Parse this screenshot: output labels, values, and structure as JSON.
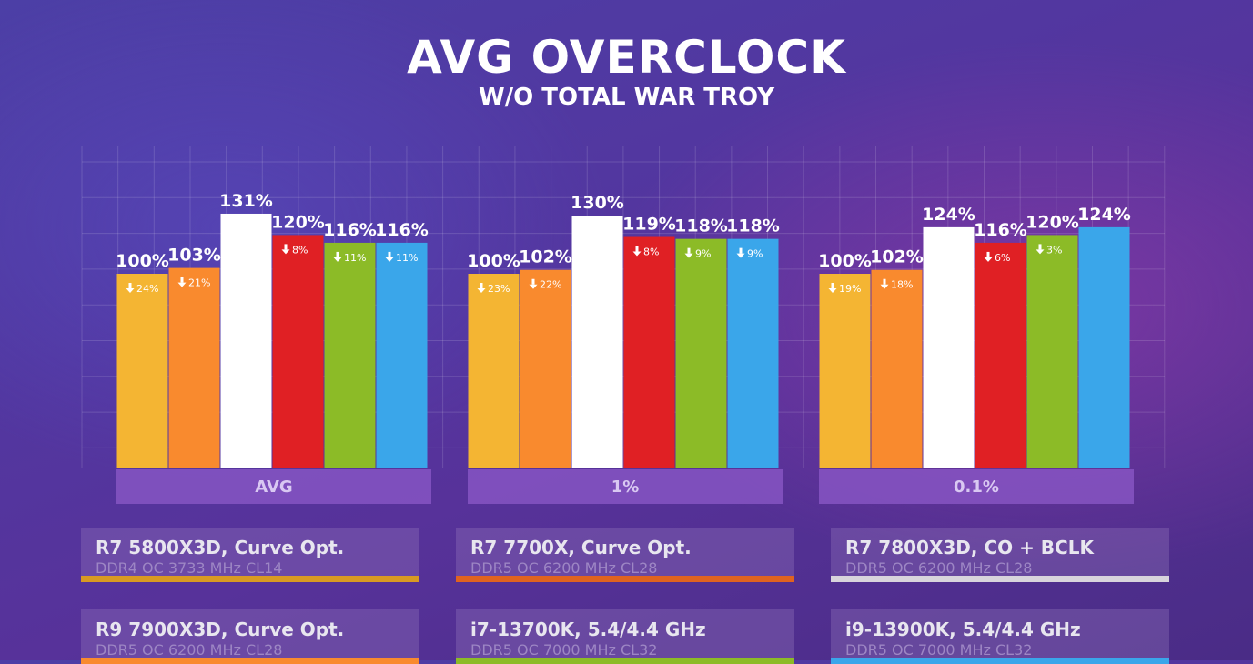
{
  "header": {
    "title": "AVG OVERCLOCK",
    "subtitle": "W/O TOTAL WAR TROY"
  },
  "chart_data": {
    "type": "bar",
    "title": "AVG OVERCLOCK",
    "subtitle": "W/O TOTAL WAR TROY",
    "categories": [
      "AVG",
      "1%",
      "0.1%"
    ],
    "ylim": [
      0,
      160
    ],
    "grid": true,
    "series": [
      {
        "name": "R7 5800X3D, Curve Opt.",
        "sub": "DDR4 OC 3733 MHz CL14",
        "color": "#f4b533",
        "values": [
          100,
          100,
          100
        ],
        "value_labels": [
          "100%",
          "100%",
          "100%"
        ],
        "drop_labels": [
          "24%",
          "23%",
          "19%"
        ]
      },
      {
        "name": "R9 7900X3D, Curve Opt.",
        "sub": "DDR5 OC 6200 MHz CL28",
        "color": "#f98a2e",
        "values": [
          103,
          102,
          102
        ],
        "value_labels": [
          "103%",
          "102%",
          "102%"
        ],
        "drop_labels": [
          "21%",
          "22%",
          "18%"
        ]
      },
      {
        "name": "R7 7800X3D, CO + BCLK",
        "sub": "DDR5 OC 6200 MHz CL28",
        "color": "#ffffff",
        "values": [
          131,
          130,
          124
        ],
        "value_labels": [
          "131%",
          "130%",
          "124%"
        ],
        "drop_labels": [
          null,
          null,
          null
        ]
      },
      {
        "name": "R7 7700X, Curve Opt.",
        "sub": "DDR5 OC 6200 MHz CL28",
        "color": "#e02024",
        "values": [
          120,
          119,
          116
        ],
        "value_labels": [
          "120%",
          "119%",
          "116%"
        ],
        "drop_labels": [
          "8%",
          "8%",
          "6%"
        ]
      },
      {
        "name": "i7-13700K, 5.4/4.4 GHz",
        "sub": "DDR5 OC 7000 MHz CL32",
        "color": "#8cbb27",
        "values": [
          116,
          118,
          120
        ],
        "value_labels": [
          "116%",
          "118%",
          "120%"
        ],
        "drop_labels": [
          "11%",
          "9%",
          "3%"
        ]
      },
      {
        "name": "i9-13900K, 5.4/4.4 GHz",
        "sub": "DDR5 OC 7000 MHz CL32",
        "color": "#3aa6ea",
        "values": [
          116,
          118,
          124
        ],
        "value_labels": [
          "116%",
          "118%",
          "124%"
        ],
        "drop_labels": [
          "11%",
          "9%",
          null
        ]
      }
    ]
  },
  "legend": [
    {
      "name": "R7 5800X3D, Curve Opt.",
      "sub": "DDR4 OC 3733 MHz CL14",
      "color": "#d99a22"
    },
    {
      "name": "R7 7700X, Curve Opt.",
      "sub": "DDR5 OC 6200 MHz CL28",
      "color": "#e0631f"
    },
    {
      "name": "R7 7800X3D, CO + BCLK",
      "sub": "DDR5 OC 6200 MHz CL28",
      "color": "#d8d4dc"
    },
    {
      "name": "R9 7900X3D, Curve Opt.",
      "sub": "DDR5 OC 6200 MHz CL28",
      "color": "#f98a2e"
    },
    {
      "name": "i7-13700K, 5.4/4.4 GHz",
      "sub": "DDR5 OC 7000 MHz CL32",
      "color": "#8cbb27"
    },
    {
      "name": "i9-13900K, 5.4/4.4 GHz",
      "sub": "DDR5 OC 7000 MHz CL32",
      "color": "#3aa6ea"
    }
  ]
}
